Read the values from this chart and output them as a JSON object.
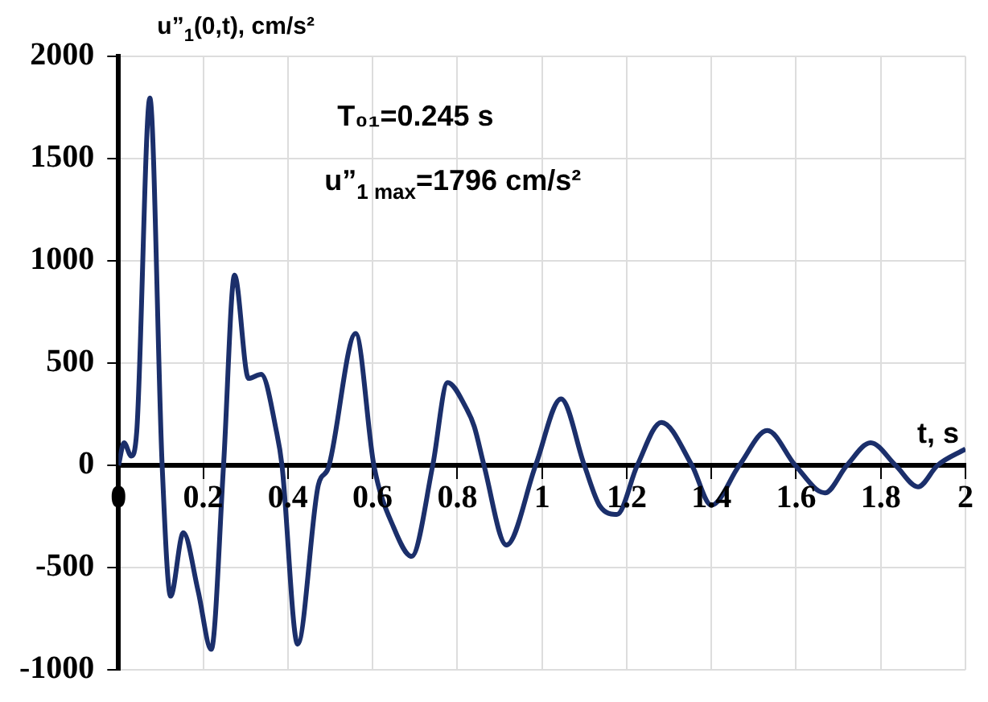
{
  "chart_data": {
    "type": "line",
    "xlabel": "t, s",
    "ylabel": "u”$_{1}$(0,t), cm/s²",
    "annotations": [
      "T₀₁=0.245 s",
      "u”$_{1 max}$=1796 cm/s²"
    ],
    "series": [
      {
        "color": "#1b2f6b",
        "x": [
          0,
          0.013,
          0.03,
          0.043,
          0.074,
          0.103,
          0.123,
          0.153,
          0.188,
          0.219,
          0.248,
          0.274,
          0.307,
          0.337,
          0.373,
          0.386,
          0.423,
          0.472,
          0.495,
          0.56,
          0.603,
          0.65,
          0.692,
          0.742,
          0.777,
          0.821,
          0.84,
          0.863,
          0.916,
          0.985,
          1.045,
          1.1,
          1.137,
          1.177,
          1.225,
          1.282,
          1.354,
          1.4,
          1.466,
          1.532,
          1.598,
          1.668,
          1.72,
          1.776,
          1.835,
          1.888,
          1.934,
          2.0
        ],
        "values": [
          0,
          110,
          45,
          165,
          1796,
          0,
          -640,
          -330,
          -615,
          -900,
          0,
          930,
          425,
          445,
          165,
          0,
          -875,
          -95,
          -15,
          645,
          0,
          -305,
          -445,
          0,
          405,
          280,
          190,
          0,
          -390,
          0,
          325,
          0,
          -200,
          -240,
          0,
          210,
          0,
          -195,
          0,
          170,
          0,
          -135,
          0,
          110,
          0,
          -105,
          0,
          80
        ]
      }
    ],
    "xlim": [
      0,
      2
    ],
    "xticks": [
      0,
      0.2,
      0.4,
      0.6,
      0.8,
      1,
      1.2,
      1.4,
      1.6,
      1.8,
      2
    ],
    "ylim": [
      -1000,
      2000
    ],
    "yticks": [
      -1000,
      -500,
      0,
      500,
      1000,
      1500,
      2000
    ],
    "grid": true
  }
}
